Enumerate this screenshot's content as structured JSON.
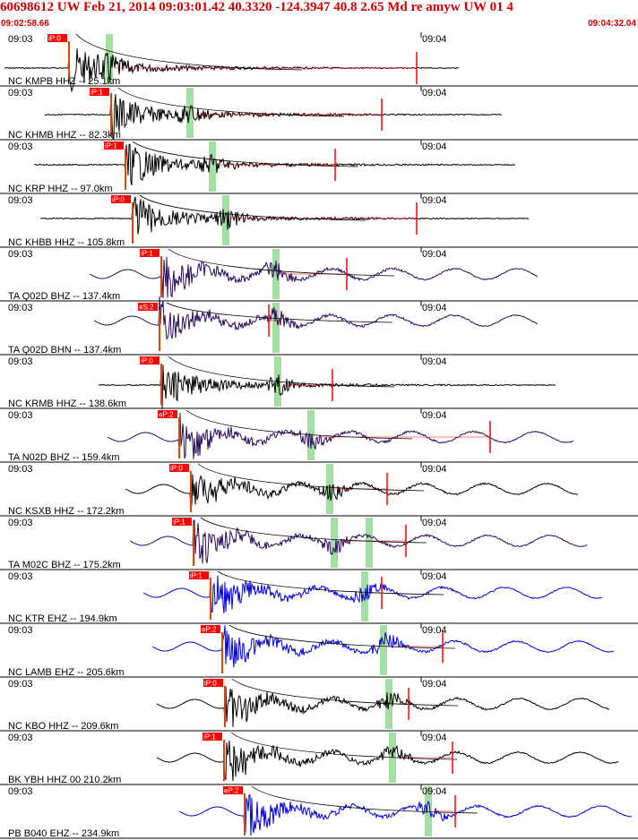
{
  "header": {
    "title": "60698612 UW Feb 21, 2014 09:03:01.42   40.3320 -124.3947 40.8 2.65 Md re amyw UW 01   4",
    "start_time": "09:02:58.66",
    "end_time": "09:04:32.04"
  },
  "time_labels": {
    "left": "09:03",
    "mid": "09:04"
  },
  "colors": {
    "header_red": "#d40000",
    "pick_red": "#ff0000",
    "trace_black": "#000000",
    "trace_purple": "#2a0a5c",
    "trace_blue": "#0000dd",
    "window_green": "#8fd68f"
  },
  "traces": [
    {
      "label": "NC KMPB HHZ -- 25.1km",
      "pick": "iP:0",
      "color": "black"
    },
    {
      "label": "NC KHMB HHZ -- 82.3km",
      "pick": "iP:1",
      "color": "black"
    },
    {
      "label": "NC KRP HHZ -- 97.0km",
      "pick": "iP:1",
      "color": "black"
    },
    {
      "label": "NC KHBB HHZ -- 105.8km",
      "pick": "iP:0",
      "color": "black"
    },
    {
      "label": "TA Q02D BHZ -- 137.4km",
      "pick": "iP:1",
      "color": "purple"
    },
    {
      "label": "TA Q02D BHN -- 137.4km",
      "pick": "eS:2",
      "color": "purple"
    },
    {
      "label": "NC KRMB HHZ -- 138.6km",
      "pick": "iP:0",
      "color": "black"
    },
    {
      "label": "TA N02D BHZ -- 159.4km",
      "pick": "eP:2",
      "color": "purple"
    },
    {
      "label": "NC KSXB HHZ -- 172.2km",
      "pick": "iP:0",
      "color": "black"
    },
    {
      "label": "TA M02C BHZ -- 175.2km",
      "pick": "iP:1",
      "color": "purple"
    },
    {
      "label": "NC KTR EHZ -- 194.9km",
      "pick": "iP:1",
      "color": "blue"
    },
    {
      "label": "NC LAMB EHZ -- 205.6km",
      "pick": "eP:2",
      "color": "blue"
    },
    {
      "label": "NC KBO HHZ -- 209.6km",
      "pick": "iP:0",
      "color": "black"
    },
    {
      "label": "BK YBH HHZ 00 210.2km",
      "pick": "iP:1",
      "color": "black"
    },
    {
      "label": "PB B040 EHZ -- 234.9km",
      "pick": "eP:2",
      "color": "blue"
    }
  ]
}
